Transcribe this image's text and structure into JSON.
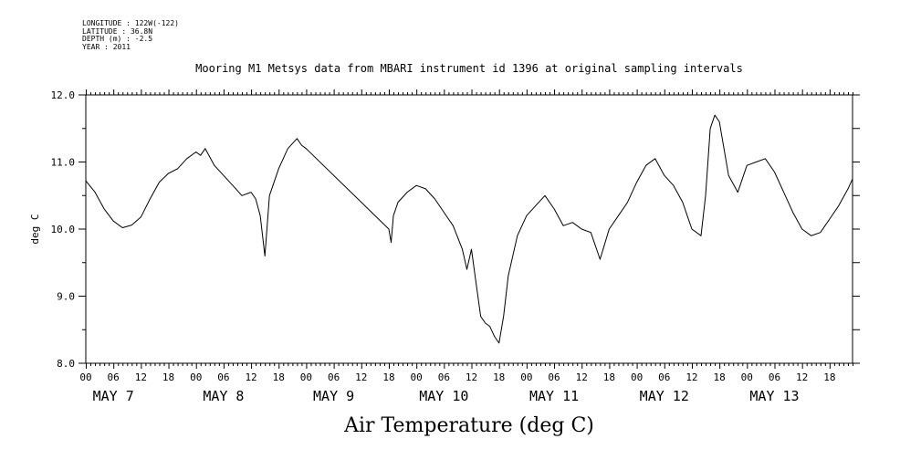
{
  "header": {
    "lines": [
      "LONGITUDE : 122W(-122)",
      "LATITUDE : 36.8N",
      "DEPTH (m) : -2.5",
      "YEAR : 2011"
    ]
  },
  "chart_data": {
    "type": "line",
    "title": "Mooring M1 Metsys data from MBARI instrument id 1396 at original sampling intervals",
    "xlabel": "Air Temperature (deg C)",
    "ylabel": "deg C",
    "xlim": [
      0,
      167
    ],
    "ylim": [
      8.0,
      12.0
    ],
    "y_ticks": [
      "8.0",
      "9.0",
      "10.0",
      "11.0",
      "12.0"
    ],
    "hour_labels": [
      "00",
      "06",
      "12",
      "18"
    ],
    "days": [
      "MAY  7",
      "MAY  8",
      "MAY  9",
      "MAY 10",
      "MAY 11",
      "MAY 12",
      "MAY 13"
    ],
    "grid": false,
    "series": [
      {
        "x": [
          0,
          2,
          4,
          6,
          8,
          10,
          12,
          14,
          16,
          18,
          20,
          22,
          24,
          25,
          26,
          28,
          30,
          32,
          34,
          36,
          37,
          38,
          39,
          40,
          42,
          44,
          46,
          47,
          48,
          66,
          66.5,
          67,
          68,
          70,
          72,
          74,
          76,
          78,
          80,
          82,
          83,
          84,
          85,
          86,
          87,
          88,
          89,
          90,
          91,
          92,
          94,
          96,
          98,
          100,
          102,
          104,
          106,
          107,
          108,
          110,
          112,
          114,
          116,
          118,
          120,
          122,
          124,
          126,
          128,
          130,
          131,
          132,
          134,
          135,
          136,
          137,
          138,
          140,
          142,
          144,
          146,
          148,
          150,
          152,
          154,
          156,
          158,
          160,
          162,
          164,
          166,
          167
        ],
        "values": [
          10.72,
          10.55,
          10.3,
          10.12,
          10.02,
          10.06,
          10.18,
          10.45,
          10.7,
          10.83,
          10.9,
          11.05,
          11.15,
          11.1,
          11.2,
          10.95,
          10.8,
          10.65,
          10.5,
          10.55,
          10.45,
          10.2,
          9.6,
          10.5,
          10.9,
          11.2,
          11.35,
          11.25,
          11.2,
          10.0,
          9.8,
          10.2,
          10.4,
          10.55,
          10.65,
          10.6,
          10.45,
          10.25,
          10.05,
          9.7,
          9.4,
          9.7,
          9.2,
          8.7,
          8.6,
          8.55,
          8.4,
          8.3,
          8.7,
          9.3,
          9.9,
          10.2,
          10.35,
          10.5,
          10.3,
          10.05,
          10.1,
          10.05,
          10.0,
          9.95,
          9.55,
          10.0,
          10.2,
          10.4,
          10.7,
          10.95,
          11.05,
          10.8,
          10.65,
          10.4,
          10.2,
          10.0,
          9.9,
          10.5,
          11.5,
          11.7,
          11.6,
          10.8,
          10.55,
          10.95,
          11.0,
          11.05,
          10.85,
          10.55,
          10.25,
          10.0,
          9.9,
          9.95,
          10.15,
          10.35,
          10.6,
          10.75
        ]
      }
    ]
  }
}
